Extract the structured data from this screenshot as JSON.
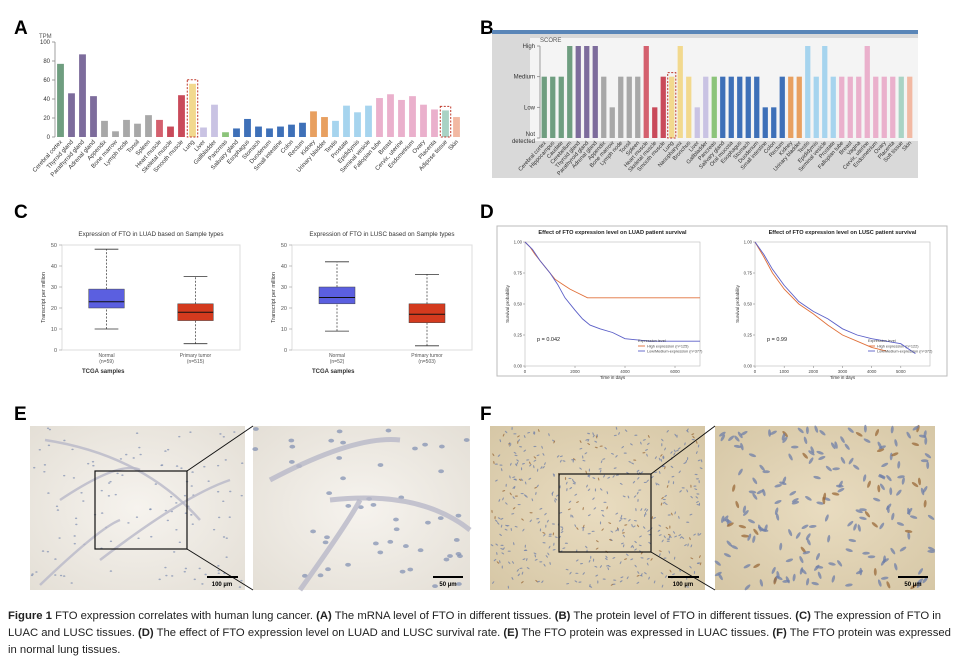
{
  "panels": {
    "a": "A",
    "b": "B",
    "c": "C",
    "d": "D",
    "e": "E",
    "f": "F"
  },
  "chart_data": [
    {
      "type": "bar",
      "y_label": "TPM",
      "categories": [
        "Cerebral cortex",
        "Thyroid gland",
        "Parathyroid gland",
        "Adrenal gland",
        "Appendix",
        "Bone marrow",
        "Lymph node",
        "Tonsil",
        "Spleen",
        "Heart muscle",
        "Skeletal muscle",
        "Smooth muscle",
        "Lung",
        "Liver",
        "Gallbladder",
        "Pancreas",
        "Salivary gland",
        "Esophagus",
        "Stomach",
        "Duodenum",
        "Small intestine",
        "Colon",
        "Rectum",
        "Kidney",
        "Urinary bladder",
        "Testis",
        "Prostate",
        "Epididymis",
        "Seminal vesicle",
        "Fallopian tube",
        "Breast",
        "Cervix, uterine",
        "Endometrium",
        "Ovary",
        "Placenta",
        "Adipose tissue",
        "Skin"
      ],
      "values": [
        77,
        46,
        87,
        43,
        17,
        6,
        18,
        14,
        23,
        18,
        11,
        44,
        56,
        10,
        34,
        5,
        9,
        19,
        11,
        9,
        11,
        13,
        15,
        27,
        21,
        17,
        33,
        26,
        33,
        41,
        45,
        39,
        43,
        34,
        29,
        28,
        21
      ],
      "colors": [
        "#6f9e80",
        "#7d6c9c",
        "#7d6c9c",
        "#7d6c9c",
        "#a8a8a8",
        "#a8a8a8",
        "#a8a8a8",
        "#a8a8a8",
        "#a8a8a8",
        "#d4606e",
        "#c94a5a",
        "#c94a5a",
        "#f2d98e",
        "#c9c3e3",
        "#c9c3e3",
        "#8cc47a",
        "#3e70b8",
        "#3e70b8",
        "#3e70b8",
        "#3e70b8",
        "#3e70b8",
        "#3e70b8",
        "#3e70b8",
        "#e8a060",
        "#e8a060",
        "#a6d4ee",
        "#a6d4ee",
        "#a6d4ee",
        "#a6d4ee",
        "#eab0cc",
        "#eab0cc",
        "#eab0cc",
        "#eab0cc",
        "#eab0cc",
        "#eab0cc",
        "#a9d3c4",
        "#f2b9a3"
      ],
      "highlight": [
        12,
        35
      ],
      "ylim": [
        0,
        100
      ],
      "yticks": [
        0,
        20,
        40,
        60,
        80,
        100
      ]
    },
    {
      "type": "bar",
      "y_label": "SCORE",
      "categories": [
        "Cerebral cortex",
        "Hippocampus",
        "Caudate",
        "Cerebellum",
        "Thyroid gland",
        "Parathyroid gland",
        "Adrenal gland",
        "Appendix",
        "Bone marrow",
        "Lymph node",
        "Tonsil",
        "Spleen",
        "Heart muscle",
        "Skeletal muscle",
        "Smooth muscle",
        "Lung",
        "Nasopharynx",
        "Bronchus",
        "Liver",
        "Gallbladder",
        "Pancreas",
        "Salivary gland",
        "Oral mucosa",
        "Esophagus",
        "Stomach",
        "Duodenum",
        "Small intestine",
        "Colon",
        "Rectum",
        "Kidney",
        "Urinary bladder",
        "Testis",
        "Epididymis",
        "Seminal vesicle",
        "Prostate",
        "Fallopian tube",
        "Breast",
        "Vagina",
        "Cervix, uterine",
        "Endometrium",
        "Ovary",
        "Placenta",
        "Soft tissue",
        "Skin"
      ],
      "values": [
        2,
        2,
        2,
        3,
        3,
        3,
        3,
        2,
        1,
        2,
        2,
        2,
        3,
        1,
        2,
        2,
        3,
        2,
        1,
        2,
        2,
        2,
        2,
        2,
        2,
        2,
        1,
        1,
        2,
        2,
        2,
        3,
        2,
        3,
        2,
        2,
        2,
        2,
        3,
        2,
        2,
        2,
        2,
        2
      ],
      "colors": [
        "#6f9e80",
        "#6f9e80",
        "#6f9e80",
        "#6f9e80",
        "#7d6c9c",
        "#7d6c9c",
        "#7d6c9c",
        "#a8a8a8",
        "#a8a8a8",
        "#a8a8a8",
        "#a8a8a8",
        "#a8a8a8",
        "#d4606e",
        "#c94a5a",
        "#c94a5a",
        "#f2d98e",
        "#f2d98e",
        "#f2d98e",
        "#c9c3e3",
        "#c9c3e3",
        "#8cc47a",
        "#3e70b8",
        "#3e70b8",
        "#3e70b8",
        "#3e70b8",
        "#3e70b8",
        "#3e70b8",
        "#3e70b8",
        "#3e70b8",
        "#e8a060",
        "#e8a060",
        "#a6d4ee",
        "#a6d4ee",
        "#a6d4ee",
        "#a6d4ee",
        "#eab0cc",
        "#eab0cc",
        "#eab0cc",
        "#eab0cc",
        "#eab0cc",
        "#eab0cc",
        "#eab0cc",
        "#a9d3c4",
        "#f2b9a3"
      ],
      "highlight": [
        15
      ],
      "ylim": [
        0,
        3
      ],
      "yticks": [
        {
          "value": 0,
          "label": "Not detected"
        },
        {
          "value": 1,
          "label": "Low"
        },
        {
          "value": 2,
          "label": "Medium"
        },
        {
          "value": 3,
          "label": "High"
        }
      ]
    },
    {
      "type": "box",
      "title": "Expression of FTO in LUAD based on Sample types",
      "y_label": "Transcript per million",
      "x_label": "TCGA samples",
      "categories": [
        "Normal",
        "Primary tumor"
      ],
      "counts": [
        "(n=59)",
        "(n=515)"
      ],
      "boxes": [
        [
          10,
          20,
          23,
          29,
          48
        ],
        [
          3,
          14,
          18,
          22,
          35
        ]
      ],
      "colors": [
        "#5b5fe0",
        "#d43a1e"
      ],
      "ylim": [
        0,
        50
      ],
      "yticks": [
        0,
        10,
        20,
        30,
        40,
        50
      ]
    },
    {
      "type": "box",
      "title": "Expression of FTO in LUSC based on Sample types",
      "y_label": "Transcript per million",
      "x_label": "TCGA samples",
      "categories": [
        "Normal",
        "Primary tumor"
      ],
      "counts": [
        "(n=52)",
        "(n=503)"
      ],
      "boxes": [
        [
          9,
          22,
          25,
          30,
          42
        ],
        [
          2,
          13,
          17,
          22,
          36
        ]
      ],
      "colors": [
        "#5b5fe0",
        "#d43a1e"
      ],
      "ylim": [
        0,
        50
      ],
      "yticks": [
        0,
        10,
        20,
        30,
        40,
        50
      ]
    },
    {
      "type": "line",
      "title": "Effect of FTO expression level on LUAD patient survival",
      "y_label": "Survival probability",
      "x_label": "Time in days",
      "annotation": "p = 0.042",
      "legend_title": "Expression level",
      "series": [
        {
          "name": "High expression (n=125)",
          "color": "#e0703a",
          "x": [
            0,
            200,
            400,
            600,
            800,
            1000,
            1200,
            1500,
            1800,
            2000,
            2500,
            3000,
            4000,
            5000,
            6000,
            7000
          ],
          "values": [
            1,
            0.96,
            0.9,
            0.85,
            0.8,
            0.75,
            0.7,
            0.66,
            0.62,
            0.6,
            0.55,
            0.55,
            0.55,
            0.55,
            0.55,
            0.55
          ]
        },
        {
          "name": "Low/Medium-expression (n=377)",
          "color": "#5b5fc7",
          "x": [
            0,
            300,
            600,
            1000,
            1300,
            1600,
            2000,
            2300,
            2600,
            3000,
            3500,
            4000,
            5000,
            6000,
            7000
          ],
          "values": [
            1,
            0.94,
            0.85,
            0.75,
            0.66,
            0.55,
            0.45,
            0.38,
            0.33,
            0.3,
            0.27,
            0.22,
            0.2,
            0.2,
            0.2
          ]
        }
      ],
      "xlim": [
        0,
        7000
      ],
      "xticks": [
        0,
        2000,
        4000,
        6000
      ],
      "ylim": [
        0,
        1
      ],
      "yticks": [
        {
          "value": 0,
          "label": "0.00"
        },
        {
          "value": 0.25,
          "label": "0.25"
        },
        {
          "value": 0.5,
          "label": "0.50"
        },
        {
          "value": 0.75,
          "label": "0.75"
        },
        {
          "value": 1,
          "label": "1.00"
        }
      ]
    },
    {
      "type": "line",
      "title": "Effect of FTO expression level on LUSC patient survival",
      "y_label": "Survival probability",
      "x_label": "Time in days",
      "annotation": "p = 0.99",
      "legend_title": "Expression level",
      "series": [
        {
          "name": "High expression (n=122)",
          "color": "#e0703a",
          "x": [
            0,
            300,
            600,
            1000,
            1500,
            2000,
            2500,
            3000,
            3500,
            4000,
            4500
          ],
          "values": [
            1,
            0.88,
            0.75,
            0.62,
            0.5,
            0.42,
            0.33,
            0.25,
            0.2,
            0.15,
            0.12
          ]
        },
        {
          "name": "Low/Medium-expression (n=372)",
          "color": "#5b5fc7",
          "x": [
            0,
            300,
            600,
            1000,
            1500,
            2000,
            2500,
            3000,
            3500,
            4000,
            4500,
            5000,
            5500
          ],
          "values": [
            1,
            0.9,
            0.78,
            0.65,
            0.52,
            0.44,
            0.38,
            0.3,
            0.25,
            0.22,
            0.2,
            0.18,
            0.1
          ]
        }
      ],
      "xlim": [
        0,
        6000
      ],
      "xticks": [
        0,
        1000,
        2000,
        3000,
        4000,
        5000
      ],
      "ylim": [
        0,
        1
      ],
      "yticks": [
        {
          "value": 0,
          "label": "0.00"
        },
        {
          "value": 0.25,
          "label": "0.25"
        },
        {
          "value": 0.5,
          "label": "0.50"
        },
        {
          "value": 0.75,
          "label": "0.75"
        },
        {
          "value": 1,
          "label": "1.00"
        }
      ]
    }
  ],
  "images": {
    "e_left_scale": "100 µm",
    "e_right_scale": "50 µm",
    "f_left_scale": "100 µm",
    "f_right_scale": "50 µm"
  },
  "caption": {
    "label": "Figure 1",
    "title": "FTO expression correlates with human lung cancer.",
    "items": [
      {
        "letter": "(A)",
        "text": "The mRNA level of FTO in different tissues."
      },
      {
        "letter": "(B)",
        "text": "The protein level of FTO in different tissues."
      },
      {
        "letter": "(C)",
        "text": "The expression of FTO in LUAC and LUSC tissues."
      },
      {
        "letter": "(D)",
        "text": "The effect of FTO expression level on LUAD and LUSC survival rate."
      },
      {
        "letter": "(E)",
        "text": "The FTO protein was expressed in LUAC tissues."
      },
      {
        "letter": "(F)",
        "text": "The FTO protein was expressed in normal lung tissues."
      }
    ]
  }
}
